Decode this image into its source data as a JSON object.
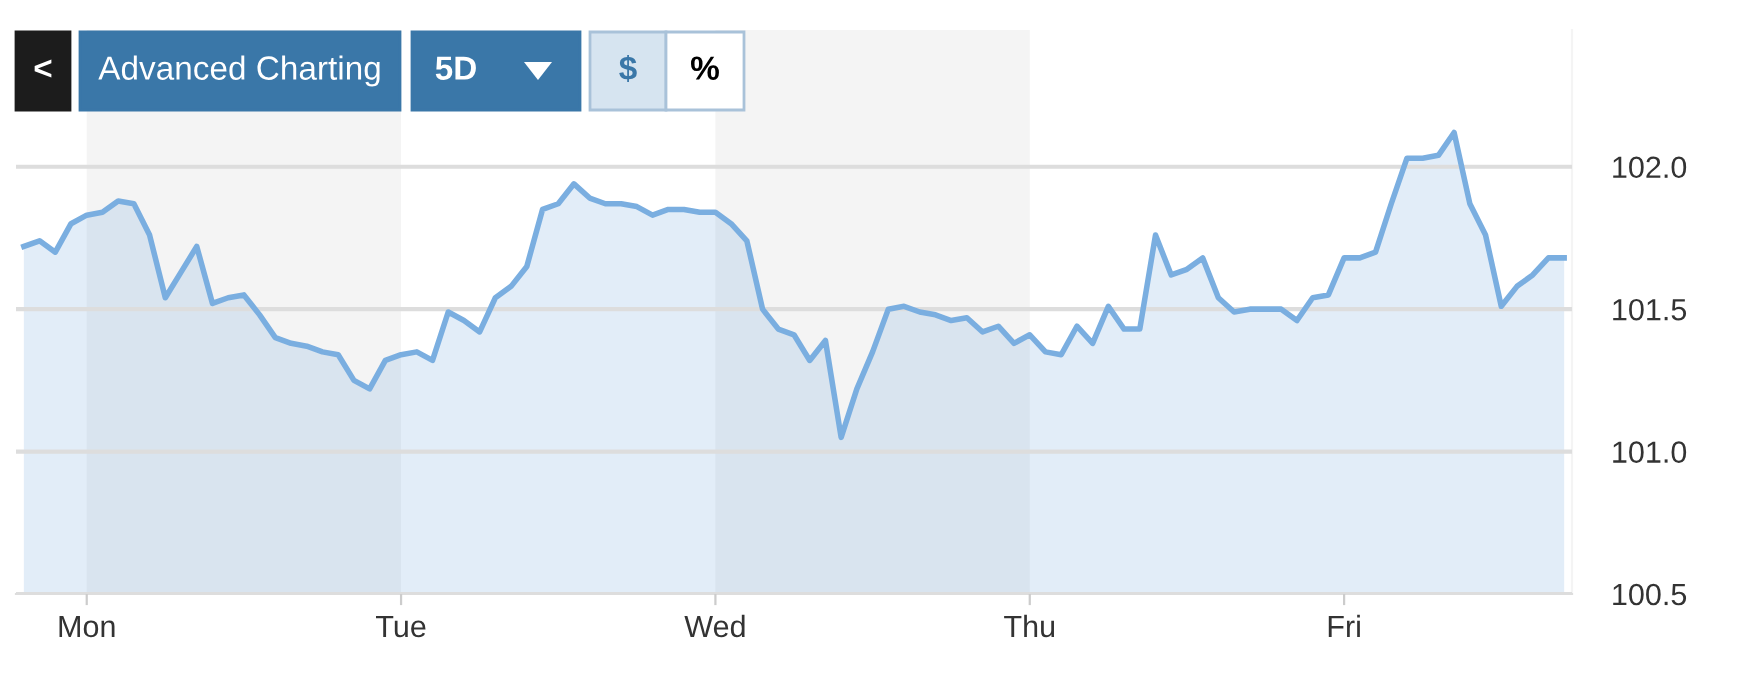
{
  "chart_data": {
    "type": "area",
    "categories": [
      null,
      null,
      null,
      null,
      "Mon",
      null,
      null,
      null,
      null,
      null,
      null,
      null,
      null,
      null,
      null,
      null,
      null,
      null,
      null,
      null,
      null,
      null,
      null,
      null,
      "Tue",
      null,
      null,
      null,
      null,
      null,
      null,
      null,
      null,
      null,
      null,
      null,
      null,
      null,
      null,
      null,
      null,
      null,
      null,
      null,
      "Wed",
      null,
      null,
      null,
      null,
      null,
      null,
      null,
      null,
      null,
      null,
      null,
      null,
      null,
      null,
      null,
      null,
      null,
      null,
      null,
      "Thu",
      null,
      null,
      null,
      null,
      null,
      null,
      null,
      null,
      null,
      null,
      null,
      null,
      null,
      null,
      null,
      null,
      null,
      null,
      null,
      "Fri",
      null,
      null,
      null,
      null,
      null,
      null,
      null,
      null,
      null,
      null,
      null,
      null,
      null,
      null
    ],
    "series": [
      {
        "color": "#7aaee0",
        "values": [
          101.72,
          101.74,
          101.7,
          101.8,
          101.83,
          101.84,
          101.88,
          101.87,
          101.76,
          101.54,
          101.63,
          101.72,
          101.52,
          101.54,
          101.55,
          101.48,
          101.4,
          101.38,
          101.37,
          101.35,
          101.34,
          101.25,
          101.22,
          101.32,
          101.34,
          101.35,
          101.32,
          101.49,
          101.46,
          101.42,
          101.54,
          101.58,
          101.65,
          101.85,
          101.87,
          101.94,
          101.89,
          101.87,
          101.87,
          101.86,
          101.83,
          101.85,
          101.85,
          101.84,
          101.84,
          101.8,
          101.74,
          101.5,
          101.43,
          101.41,
          101.32,
          101.39,
          101.05,
          101.22,
          101.35,
          101.5,
          101.51,
          101.49,
          101.48,
          101.46,
          101.47,
          101.42,
          101.44,
          101.38,
          101.41,
          101.35,
          101.34,
          101.44,
          101.38,
          101.51,
          101.43,
          101.43,
          101.76,
          101.62,
          101.64,
          101.68,
          101.54,
          101.49,
          101.5,
          101.5,
          101.5,
          101.46,
          101.54,
          101.55,
          101.68,
          101.68,
          101.7,
          101.87,
          102.03,
          102.03,
          102.04,
          102.12,
          101.87,
          101.76,
          101.51,
          101.58,
          101.62,
          101.68,
          101.68
        ]
      }
    ],
    "ylim": [
      100.5,
      102.48
    ],
    "yticks": [
      100.5,
      {
        "value": 101,
        "label": "101.0"
      },
      101.5,
      {
        "value": 102,
        "label": "102.0"
      }
    ],
    "grid": "y",
    "bands": [
      {
        "axis": "x",
        "from": "Mon",
        "to": "Tue",
        "color": "#f4f4f4"
      },
      {
        "axis": "x",
        "from": "Wed",
        "to": "Thu",
        "color": "#f4f4f4"
      }
    ],
    "annotations": [
      "<",
      "Advanced Charting",
      "5D",
      "$",
      "%"
    ]
  }
}
